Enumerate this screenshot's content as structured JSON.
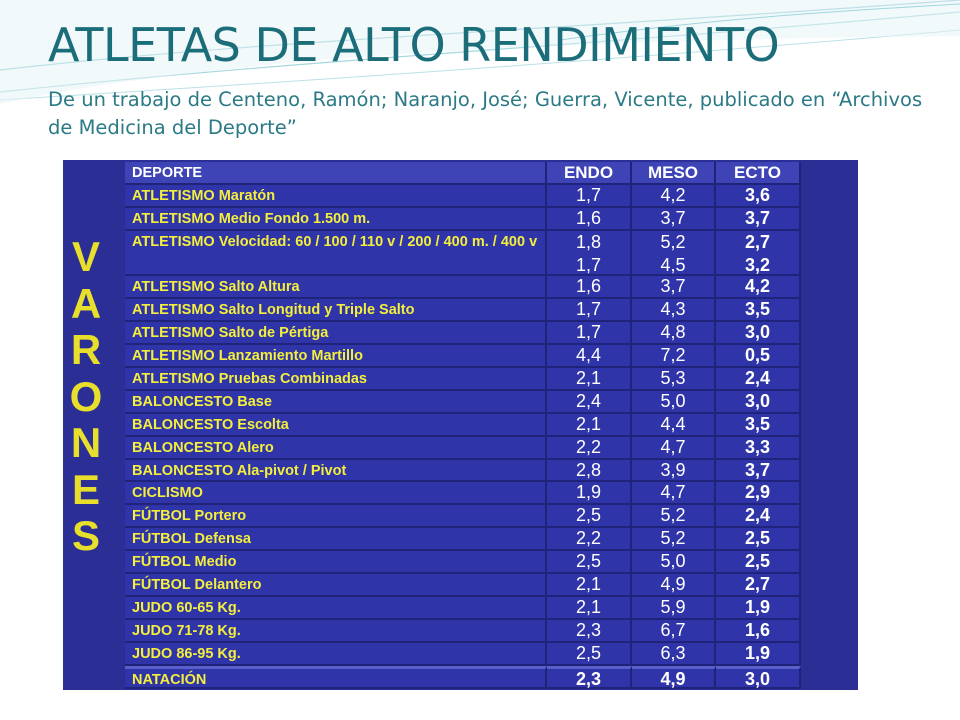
{
  "title": "ATLETAS DE ALTO RENDIMIENTO",
  "subtitle": "De un trabajo de Centeno, Ramón; Naranjo, José; Guerra, Vicente, publicado en “Archivos de Medicina del Deporte”",
  "accent_colors": {
    "title": "#1c6d7a",
    "panel": "#2a2e95",
    "sport_text": "#f4ee3c",
    "vertical_word": "#e7df2b"
  },
  "vertical_letters": [
    "V",
    "A",
    "R",
    "O",
    "N",
    "E",
    "S"
  ],
  "table": {
    "headers": {
      "sport": "DEPORTE",
      "endo": "ENDO",
      "meso": "MESO",
      "ecto": "ECTO"
    },
    "rows": [
      {
        "sport": "ATLETISMO Maratón",
        "endo": "1,7",
        "meso": "4,2",
        "ecto": "3,6"
      },
      {
        "sport": "ATLETISMO Medio Fondo 1.500 m.",
        "endo": "1,6",
        "meso": "3,7",
        "ecto": "3,7"
      },
      {
        "sport": "ATLETISMO Velocidad: 60 / 100 / 110 v / 200 / 400 m. / 400 v",
        "endo": [
          "1,8",
          "1,7"
        ],
        "meso": [
          "5,2",
          "4,5"
        ],
        "ecto": [
          "2,7",
          "3,2"
        ]
      },
      {
        "sport": "ATLETISMO Salto Altura",
        "endo": "1,6",
        "meso": "3,7",
        "ecto": "4,2"
      },
      {
        "sport": "ATLETISMO Salto Longitud y Triple Salto",
        "endo": "1,7",
        "meso": "4,3",
        "ecto": "3,5"
      },
      {
        "sport": "ATLETISMO Salto de Pértiga",
        "endo": "1,7",
        "meso": "4,8",
        "ecto": "3,0"
      },
      {
        "sport": "ATLETISMO Lanzamiento Martillo",
        "endo": "4,4",
        "meso": "7,2",
        "ecto": "0,5"
      },
      {
        "sport": "ATLETISMO Pruebas Combinadas",
        "endo": "2,1",
        "meso": "5,3",
        "ecto": "2,4"
      },
      {
        "sport": "BALONCESTO Base",
        "endo": "2,4",
        "meso": "5,0",
        "ecto": "3,0"
      },
      {
        "sport": "BALONCESTO Escolta",
        "endo": "2,1",
        "meso": "4,4",
        "ecto": "3,5"
      },
      {
        "sport": "BALONCESTO Alero",
        "endo": "2,2",
        "meso": "4,7",
        "ecto": "3,3"
      },
      {
        "sport": "BALONCESTO Ala-pivot / Pivot",
        "endo": "2,8",
        "meso": "3,9",
        "ecto": "3,7"
      },
      {
        "sport": "CICLISMO",
        "endo": "1,9",
        "meso": "4,7",
        "ecto": "2,9"
      },
      {
        "sport": "FÚTBOL Portero",
        "endo": "2,5",
        "meso": "5,2",
        "ecto": "2,4"
      },
      {
        "sport": "FÚTBOL Defensa",
        "endo": "2,2",
        "meso": "5,2",
        "ecto": "2,5"
      },
      {
        "sport": "FÚTBOL Medio",
        "endo": "2,5",
        "meso": "5,0",
        "ecto": "2,5"
      },
      {
        "sport": "FÚTBOL Delantero",
        "endo": "2,1",
        "meso": "4,9",
        "ecto": "2,7"
      },
      {
        "sport": "JUDO 60-65 Kg.",
        "endo": "2,1",
        "meso": "5,9",
        "ecto": "1,9"
      },
      {
        "sport": "JUDO 71-78 Kg.",
        "endo": "2,3",
        "meso": "6,7",
        "ecto": "1,6"
      },
      {
        "sport": "JUDO 86-95 Kg.",
        "endo": "2,5",
        "meso": "6,3",
        "ecto": "1,9"
      },
      {
        "sport": "NATACIÓN",
        "endo": "2,3",
        "meso": "4,9",
        "ecto": "3,0"
      }
    ]
  }
}
